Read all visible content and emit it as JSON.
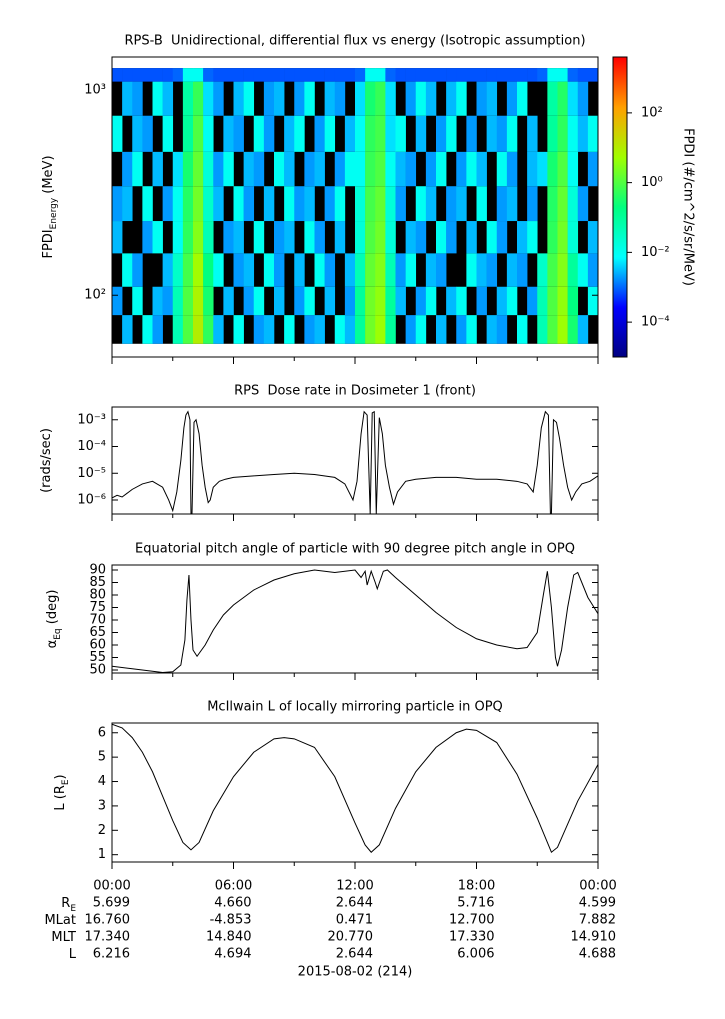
{
  "chart_data": [
    {
      "type": "heatmap",
      "title": "RPS-B  Unidirectional, differential flux vs energy (Isotropic assumption)",
      "ylabel": [
        {
          "text": "FPDI"
        },
        {
          "text": "Energy",
          "sub": true
        },
        {
          "text": " (MeV)"
        }
      ],
      "log_y": true,
      "xlim": [
        0,
        24
      ],
      "ylim": [
        50,
        1450
      ],
      "xticks": [
        0,
        6,
        12,
        18,
        24
      ],
      "xminor_ticks": [
        3,
        9,
        15,
        21
      ],
      "yticks": [
        {
          "value": 100,
          "label": "10²"
        },
        {
          "value": 1000,
          "label": "10³"
        }
      ],
      "missing_color": "#000000",
      "x_bins": [
        0,
        0.5,
        1,
        1.5,
        2,
        2.5,
        3,
        3.5,
        4,
        4.5,
        5,
        5.5,
        6,
        6.5,
        7,
        7.5,
        8,
        8.5,
        9,
        9.5,
        10,
        10.5,
        11,
        11.5,
        12,
        12.5,
        13,
        13.5,
        14,
        14.5,
        15,
        15.5,
        16,
        16.5,
        17,
        17.5,
        18,
        18.5,
        19,
        19.5,
        20,
        20.5,
        21,
        21.5,
        22,
        22.5,
        23,
        23.5,
        24
      ],
      "y_bins": [
        58,
        80,
        110,
        160,
        230,
        340,
        500,
        750,
        1100,
        1280
      ],
      "values": [
        [
          null,
          0.003,
          null,
          0.01,
          0.002,
          null,
          0.05,
          1,
          10,
          0.5,
          0.003,
          null,
          0.01,
          null,
          0.002,
          0.003,
          null,
          0.01,
          null,
          0.002,
          0.003,
          null,
          0.01,
          0.003,
          0.1,
          2,
          5,
          0.1,
          null,
          0.002,
          0.01,
          null,
          0.003,
          null,
          0.002,
          0.01,
          null,
          0.003,
          0.002,
          null,
          0.01,
          null,
          0.05,
          1,
          5,
          0.3,
          0.003,
          null
        ],
        [
          0.002,
          null,
          0.01,
          null,
          0.003,
          0.002,
          0.05,
          1,
          8,
          0.3,
          null,
          0.003,
          null,
          0.002,
          0.01,
          null,
          0.003,
          null,
          0.002,
          0.01,
          null,
          0.003,
          null,
          0.002,
          0.1,
          2,
          4,
          0.1,
          0.003,
          null,
          0.002,
          0.01,
          null,
          0.003,
          0.01,
          null,
          0.002,
          null,
          0.003,
          0.01,
          null,
          0.002,
          0.05,
          1,
          4,
          0.2,
          null,
          0.01
        ],
        [
          null,
          0.01,
          0.002,
          null,
          null,
          0.003,
          0.03,
          0.8,
          6,
          0.2,
          0.01,
          null,
          0.002,
          0.003,
          null,
          0.01,
          0.002,
          null,
          0.003,
          null,
          0.01,
          0.002,
          null,
          0.003,
          0.05,
          1.5,
          3,
          0.05,
          0.002,
          0.01,
          null,
          0.003,
          0.002,
          null,
          null,
          0.01,
          0.003,
          0.002,
          null,
          0.003,
          0.002,
          null,
          0.03,
          0.8,
          3,
          0.1,
          0.01,
          0.002
        ],
        [
          0.003,
          null,
          null,
          0.002,
          0.01,
          null,
          0.01,
          0.5,
          3,
          0.05,
          null,
          0.002,
          0.003,
          null,
          0.01,
          null,
          0.002,
          0.003,
          null,
          0.01,
          0.002,
          null,
          0.003,
          null,
          0.02,
          1,
          2,
          0.02,
          null,
          0.003,
          0.002,
          null,
          0.01,
          0.002,
          null,
          0.003,
          null,
          0.01,
          0.002,
          null,
          0.003,
          0.01,
          null,
          0.5,
          2,
          0.02,
          null,
          0.003
        ],
        [
          0.002,
          0.003,
          null,
          0.01,
          null,
          0.002,
          0.01,
          0.4,
          2,
          0.03,
          0.003,
          null,
          0.01,
          0.002,
          null,
          0.003,
          null,
          0.01,
          0.002,
          0.003,
          null,
          0.002,
          0.01,
          null,
          0.02,
          0.8,
          1.5,
          0.02,
          0.002,
          null,
          0.01,
          0.003,
          null,
          0.002,
          0.003,
          null,
          0.01,
          null,
          0.002,
          0.003,
          null,
          0.002,
          null,
          0.4,
          1.5,
          0.02,
          0.002,
          null
        ],
        [
          null,
          0.002,
          0.01,
          null,
          0.003,
          null,
          0.005,
          0.3,
          1.5,
          0.02,
          0.002,
          0.01,
          null,
          0.003,
          0.002,
          null,
          0.01,
          0.003,
          null,
          0.002,
          0.003,
          null,
          0.002,
          0.01,
          0.01,
          0.6,
          1,
          0.01,
          0.003,
          0.002,
          null,
          0.002,
          0.01,
          null,
          0.002,
          0.01,
          0.003,
          null,
          0.01,
          0.002,
          null,
          0.003,
          0.005,
          0.3,
          1,
          0.01,
          null,
          0.002
        ],
        [
          0.01,
          null,
          0.003,
          0.002,
          null,
          0.01,
          null,
          0.1,
          1,
          0.01,
          null,
          0.003,
          0.002,
          null,
          0.01,
          0.002,
          null,
          0.003,
          0.01,
          null,
          0.002,
          0.01,
          null,
          0.003,
          0.01,
          0.5,
          0.8,
          0.005,
          0.01,
          null,
          0.003,
          null,
          0.002,
          0.01,
          null,
          0.002,
          null,
          0.003,
          0.002,
          0.01,
          null,
          0.003,
          null,
          0.1,
          0.5,
          0.01,
          0.003,
          0.01
        ],
        [
          null,
          0.003,
          0.002,
          null,
          0.01,
          0.003,
          null,
          0.08,
          0.6,
          0.005,
          0.002,
          null,
          0.003,
          0.01,
          null,
          0.002,
          0.003,
          null,
          0.002,
          0.01,
          null,
          0.003,
          0.002,
          null,
          0.005,
          0.3,
          0.6,
          0.005,
          null,
          0.002,
          0.01,
          0.003,
          null,
          0.003,
          0.01,
          null,
          0.002,
          0.003,
          null,
          0.002,
          0.01,
          null,
          null,
          0.08,
          0.4,
          0.005,
          0.002,
          null
        ],
        [
          0.0008,
          0.0008,
          0.0008,
          0.0008,
          0.0008,
          0.0008,
          0.001,
          0.01,
          0.01,
          0.001,
          0.0008,
          0.0008,
          0.0008,
          0.0008,
          0.0008,
          0.0008,
          0.0008,
          0.0008,
          0.0008,
          0.0008,
          0.0008,
          0.0008,
          0.0008,
          0.0008,
          0.001,
          0.01,
          0.01,
          0.001,
          0.0008,
          0.0008,
          0.0008,
          0.0008,
          0.0008,
          0.0008,
          0.0008,
          0.0008,
          0.0008,
          0.0008,
          0.0008,
          0.0008,
          0.0008,
          0.0008,
          0.001,
          0.01,
          0.01,
          0.001,
          0.0008,
          0.0008
        ]
      ],
      "colorbar": {
        "label": "FPDI (#/cm^2/s/sr/MeV)",
        "log": true,
        "lim": [
          1e-05,
          4000
        ],
        "ticks": [
          {
            "value": 0.0001,
            "label": "10⁻⁴"
          },
          {
            "value": 0.01,
            "label": "10⁻²"
          },
          {
            "value": 1,
            "label": "10⁰"
          },
          {
            "value": 100,
            "label": "10²"
          }
        ],
        "colormap": [
          "#000080",
          "#0000ff",
          "#00ffff",
          "#00ff80",
          "#a0ff00",
          "#ffa000",
          "#ff0000"
        ]
      }
    },
    {
      "type": "line",
      "title": "RPS  Dose rate in Dosimeter 1 (front)",
      "ylabel": [
        {
          "text": "(rads/sec)"
        }
      ],
      "log_y": true,
      "xlim": [
        0,
        24
      ],
      "ylim": [
        3e-07,
        0.003
      ],
      "color": "#000000",
      "xticks": [
        0,
        6,
        12,
        18,
        24
      ],
      "xminor_ticks": [
        3,
        9,
        15,
        21
      ],
      "yticks": [
        {
          "value": 1e-06,
          "label": "10⁻⁶"
        },
        {
          "value": 1e-05,
          "label": "10⁻⁵"
        },
        {
          "value": 0.0001,
          "label": "10⁻⁴"
        },
        {
          "value": 0.001,
          "label": "10⁻³"
        }
      ],
      "x": [
        0,
        0.25,
        0.5,
        0.75,
        1,
        1.5,
        2,
        2.5,
        2.8,
        3.0,
        3.2,
        3.4,
        3.55,
        3.65,
        3.75,
        3.85,
        3.9,
        3.95,
        4.05,
        4.15,
        4.3,
        4.45,
        4.6,
        4.75,
        4.85,
        5.0,
        5.3,
        5.6,
        6,
        7,
        8,
        9,
        10,
        11,
        11.5,
        11.9,
        12.1,
        12.3,
        12.45,
        12.6,
        12.75,
        12.85,
        12.95,
        13.05,
        13.2,
        13.35,
        13.5,
        13.7,
        13.9,
        14.1,
        14.5,
        15,
        16,
        17,
        18,
        19,
        20,
        20.5,
        20.8,
        21.0,
        21.2,
        21.4,
        21.55,
        21.65,
        21.7,
        21.8,
        21.95,
        22.1,
        22.3,
        22.5,
        22.7,
        22.9,
        23.2,
        23.6,
        24
      ],
      "values": [
        1.2e-06,
        1.5e-06,
        1.3e-06,
        1.8e-06,
        2.5e-06,
        4e-06,
        5e-06,
        3e-06,
        1e-06,
        4e-07,
        2e-06,
        3e-05,
        0.0005,
        0.0015,
        0.002,
        0.001,
        3e-07,
        3e-07,
        0.0008,
        0.001,
        0.0003,
        2e-05,
        3e-06,
        8e-07,
        1e-06,
        3e-06,
        5e-06,
        6e-06,
        7e-06,
        8e-06,
        9e-06,
        1e-05,
        9e-06,
        7e-06,
        4e-06,
        1e-06,
        5e-06,
        0.0003,
        0.002,
        0.0015,
        3e-07,
        0.0018,
        0.002,
        3e-07,
        0.0012,
        0.0003,
        2e-05,
        3e-06,
        7e-07,
        2e-06,
        5e-06,
        6e-06,
        7e-06,
        7e-06,
        6e-06,
        6e-06,
        5e-06,
        4e-06,
        2e-06,
        2e-05,
        0.0005,
        0.002,
        0.0015,
        3e-07,
        3e-07,
        0.001,
        0.0008,
        0.0002,
        2e-05,
        3e-06,
        1e-06,
        2e-06,
        4e-06,
        5e-06,
        8e-06
      ]
    },
    {
      "type": "line",
      "title": "Equatorial pitch angle of particle with 90 degree pitch angle in OPQ",
      "ylabel": [
        {
          "text": "α"
        },
        {
          "text": "Eq",
          "sub": true
        },
        {
          "text": " (deg)"
        }
      ],
      "log_y": false,
      "xlim": [
        0,
        24
      ],
      "ylim": [
        48.8,
        92
      ],
      "color": "#000000",
      "xticks": [
        0,
        6,
        12,
        18,
        24
      ],
      "xminor_ticks": [
        3,
        9,
        15,
        21
      ],
      "yticks": [
        50,
        55,
        60,
        65,
        70,
        75,
        80,
        85,
        90
      ],
      "x": [
        0,
        1,
        2,
        2.5,
        3,
        3.4,
        3.6,
        3.7,
        3.8,
        3.9,
        4.0,
        4.2,
        4.6,
        5,
        5.5,
        6,
        7,
        8,
        9,
        10,
        11,
        12,
        12.3,
        12.5,
        12.6,
        12.8,
        13,
        13.1,
        13.4,
        13.6,
        14,
        15,
        16,
        17,
        18,
        19,
        20,
        20.5,
        21,
        21.3,
        21.5,
        21.7,
        21.9,
        22,
        22.2,
        22.5,
        22.8,
        23,
        23.5,
        24
      ],
      "values": [
        51.5,
        50.5,
        49.5,
        49.0,
        49.3,
        52,
        62,
        78,
        88,
        70,
        58,
        55.5,
        60,
        66,
        72,
        76,
        82,
        86,
        88.5,
        90,
        89,
        90,
        87,
        89.5,
        84,
        89.5,
        85,
        82.5,
        89.5,
        90,
        87,
        80,
        73,
        67,
        62.5,
        60,
        58.5,
        59,
        65,
        80,
        89.5,
        75,
        55,
        51.5,
        58,
        75,
        88,
        89,
        79,
        72.5
      ]
    },
    {
      "type": "line",
      "title": "McIlwain L of locally mirroring particle in OPQ",
      "ylabel": [
        {
          "text": "L (R"
        },
        {
          "text": "E",
          "sub": true
        },
        {
          "text": ")"
        }
      ],
      "log_y": false,
      "xlim": [
        0,
        24
      ],
      "ylim": [
        0.7,
        6.4
      ],
      "color": "#000000",
      "xticks": [
        {
          "value": 0,
          "label": "00:00"
        },
        {
          "value": 6,
          "label": "06:00"
        },
        {
          "value": 12,
          "label": "12:00"
        },
        {
          "value": 18,
          "label": "18:00"
        },
        {
          "value": 24,
          "label": "00:00"
        }
      ],
      "xminor_ticks": [
        3,
        9,
        15,
        21
      ],
      "yticks": [
        1,
        2,
        3,
        4,
        5,
        6
      ],
      "x": [
        0,
        0.5,
        1,
        1.5,
        2,
        2.5,
        3,
        3.5,
        3.9,
        4.3,
        5,
        6,
        7,
        8,
        8.5,
        9,
        10,
        11,
        12,
        12.5,
        12.8,
        13.2,
        14,
        15,
        16,
        17,
        17.5,
        18,
        19,
        20,
        21,
        21.5,
        21.7,
        22,
        23,
        24
      ],
      "values": [
        6.35,
        6.2,
        5.8,
        5.2,
        4.4,
        3.4,
        2.4,
        1.5,
        1.2,
        1.5,
        2.8,
        4.2,
        5.2,
        5.75,
        5.8,
        5.75,
        5.4,
        4.2,
        2.3,
        1.4,
        1.1,
        1.4,
        2.9,
        4.4,
        5.4,
        6.0,
        6.15,
        6.1,
        5.6,
        4.3,
        2.5,
        1.5,
        1.1,
        1.3,
        3.2,
        4.7
      ]
    }
  ],
  "ephemeris": {
    "rows": [
      {
        "label": [
          {
            "text": "R"
          },
          {
            "text": "E",
            "sub": true
          }
        ],
        "values": [
          "5.699",
          "4.660",
          "2.644",
          "5.716",
          "4.599"
        ]
      },
      {
        "label": [
          {
            "text": "MLat"
          }
        ],
        "values": [
          "16.760",
          "-4.853",
          "0.471",
          "12.700",
          "7.882"
        ]
      },
      {
        "label": [
          {
            "text": "MLT"
          }
        ],
        "values": [
          "17.340",
          "14.840",
          "20.770",
          "17.330",
          "14.910"
        ]
      },
      {
        "label": [
          {
            "text": "L"
          }
        ],
        "values": [
          "6.216",
          "4.694",
          "2.644",
          "6.006",
          "4.688"
        ]
      }
    ],
    "date": "2015-08-02 (214)"
  }
}
